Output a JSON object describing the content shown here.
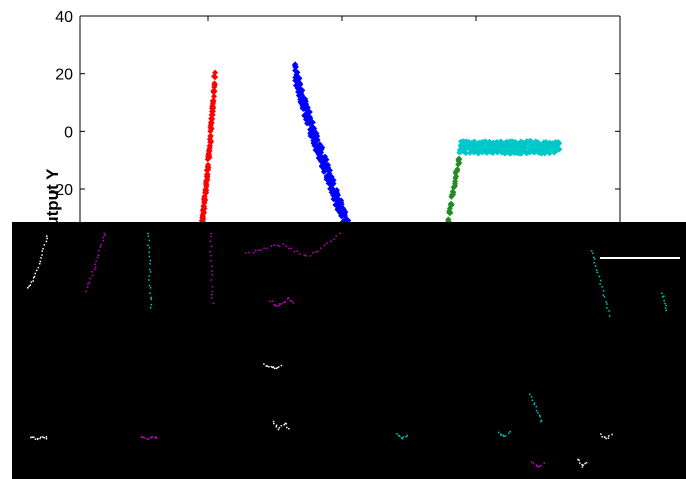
{
  "chart_data": {
    "type": "scatter",
    "title": "",
    "xlabel": "",
    "ylabel": "Output Y",
    "ylim": [
      -100,
      40
    ],
    "yticks": [
      40,
      20,
      0,
      -20
    ],
    "grid": false,
    "occlusion_note": "Lower portion of the figure is covered by a black region with faint colored point traces",
    "series": [
      {
        "color": "#ff0000",
        "marker": "diamond",
        "segment": {
          "x0": 0.44,
          "y0": -39,
          "x1": 0.5,
          "y1": 19
        },
        "curve": 1.35,
        "spread": 2.2,
        "n": 150
      },
      {
        "color": "#0000ff",
        "marker": "diamond",
        "segment": {
          "x0": 0.795,
          "y0": 22,
          "x1": 1.0,
          "y1": -35
        },
        "curve": 0.85,
        "spread": 3.5,
        "n": 260
      },
      {
        "color": "#228b22",
        "marker": "diamond",
        "segment": {
          "x0": 1.35,
          "y0": -38,
          "x1": 1.405,
          "y1": -9
        },
        "curve": 1.0,
        "spread": 1.5,
        "n": 45
      },
      {
        "color": "#00c8c8",
        "marker": "diamond",
        "segment": {
          "x0": 1.405,
          "y0": -5.5,
          "x1": 1.775,
          "y1": -5.5
        },
        "curve": 1.0,
        "spread": 2.2,
        "n": 280
      }
    ],
    "overlay_traces": [
      {
        "color": "#ffffff",
        "points": [
          [
            28,
            288
          ],
          [
            32,
            280
          ],
          [
            36,
            270
          ],
          [
            40,
            258
          ],
          [
            44,
            244
          ],
          [
            47,
            232
          ]
        ]
      },
      {
        "color": "#c800c8",
        "points": [
          [
            86,
            290
          ],
          [
            90,
            278
          ],
          [
            94,
            266
          ],
          [
            98,
            254
          ],
          [
            102,
            240
          ],
          [
            105,
            230
          ]
        ]
      },
      {
        "color": "#00c8c8",
        "points": [
          [
            148,
            232
          ],
          [
            148,
            248
          ],
          [
            149,
            264
          ],
          [
            149,
            280
          ],
          [
            150,
            296
          ],
          [
            150,
            310
          ]
        ]
      },
      {
        "color": "#c800c8",
        "points": [
          [
            210,
            232
          ],
          [
            210,
            250
          ],
          [
            211,
            270
          ],
          [
            211,
            290
          ],
          [
            212,
            306
          ]
        ]
      },
      {
        "color": "#c800c8",
        "points": [
          [
            246,
            252
          ],
          [
            258,
            250
          ],
          [
            270,
            246
          ],
          [
            282,
            244
          ],
          [
            294,
            250
          ],
          [
            306,
            256
          ],
          [
            318,
            250
          ],
          [
            330,
            240
          ],
          [
            342,
            230
          ]
        ]
      },
      {
        "color": "#00c8c8",
        "points": [
          [
            590,
            250
          ],
          [
            594,
            262
          ],
          [
            598,
            276
          ],
          [
            602,
            290
          ],
          [
            606,
            304
          ],
          [
            610,
            318
          ]
        ]
      },
      {
        "color": "#c800c8",
        "points": [
          [
            270,
            300
          ],
          [
            276,
            306
          ],
          [
            282,
            302
          ],
          [
            288,
            298
          ],
          [
            294,
            304
          ]
        ]
      },
      {
        "color": "#ffffff",
        "points": [
          [
            264,
            364
          ],
          [
            270,
            366
          ],
          [
            276,
            368
          ],
          [
            282,
            364
          ]
        ]
      },
      {
        "color": "#00c8c8",
        "points": [
          [
            530,
            394
          ],
          [
            534,
            404
          ],
          [
            538,
            414
          ],
          [
            542,
            424
          ]
        ]
      },
      {
        "color": "#ffffff",
        "points": [
          [
            30,
            436
          ],
          [
            36,
            438
          ],
          [
            42,
            436
          ],
          [
            48,
            438
          ]
        ]
      },
      {
        "color": "#c800c8",
        "points": [
          [
            140,
            436
          ],
          [
            146,
            438
          ],
          [
            152,
            436
          ],
          [
            158,
            438
          ]
        ]
      },
      {
        "color": "#ffffff",
        "points": [
          [
            272,
            420
          ],
          [
            278,
            428
          ],
          [
            284,
            422
          ],
          [
            290,
            430
          ]
        ]
      },
      {
        "color": "#00c8c8",
        "points": [
          [
            396,
            434
          ],
          [
            402,
            438
          ],
          [
            408,
            434
          ]
        ]
      },
      {
        "color": "#00c8c8",
        "points": [
          [
            498,
            432
          ],
          [
            504,
            436
          ],
          [
            510,
            430
          ]
        ]
      },
      {
        "color": "#ffffff",
        "points": [
          [
            600,
            434
          ],
          [
            606,
            438
          ],
          [
            612,
            432
          ]
        ]
      },
      {
        "color": "#c800c8",
        "points": [
          [
            532,
            462
          ],
          [
            538,
            466
          ],
          [
            544,
            462
          ]
        ]
      },
      {
        "color": "#ffffff",
        "points": [
          [
            578,
            458
          ],
          [
            582,
            466
          ],
          [
            586,
            460
          ]
        ]
      },
      {
        "color": "#00c8c8",
        "points": [
          [
            662,
            292
          ],
          [
            664,
            302
          ],
          [
            666,
            312
          ]
        ]
      }
    ]
  }
}
